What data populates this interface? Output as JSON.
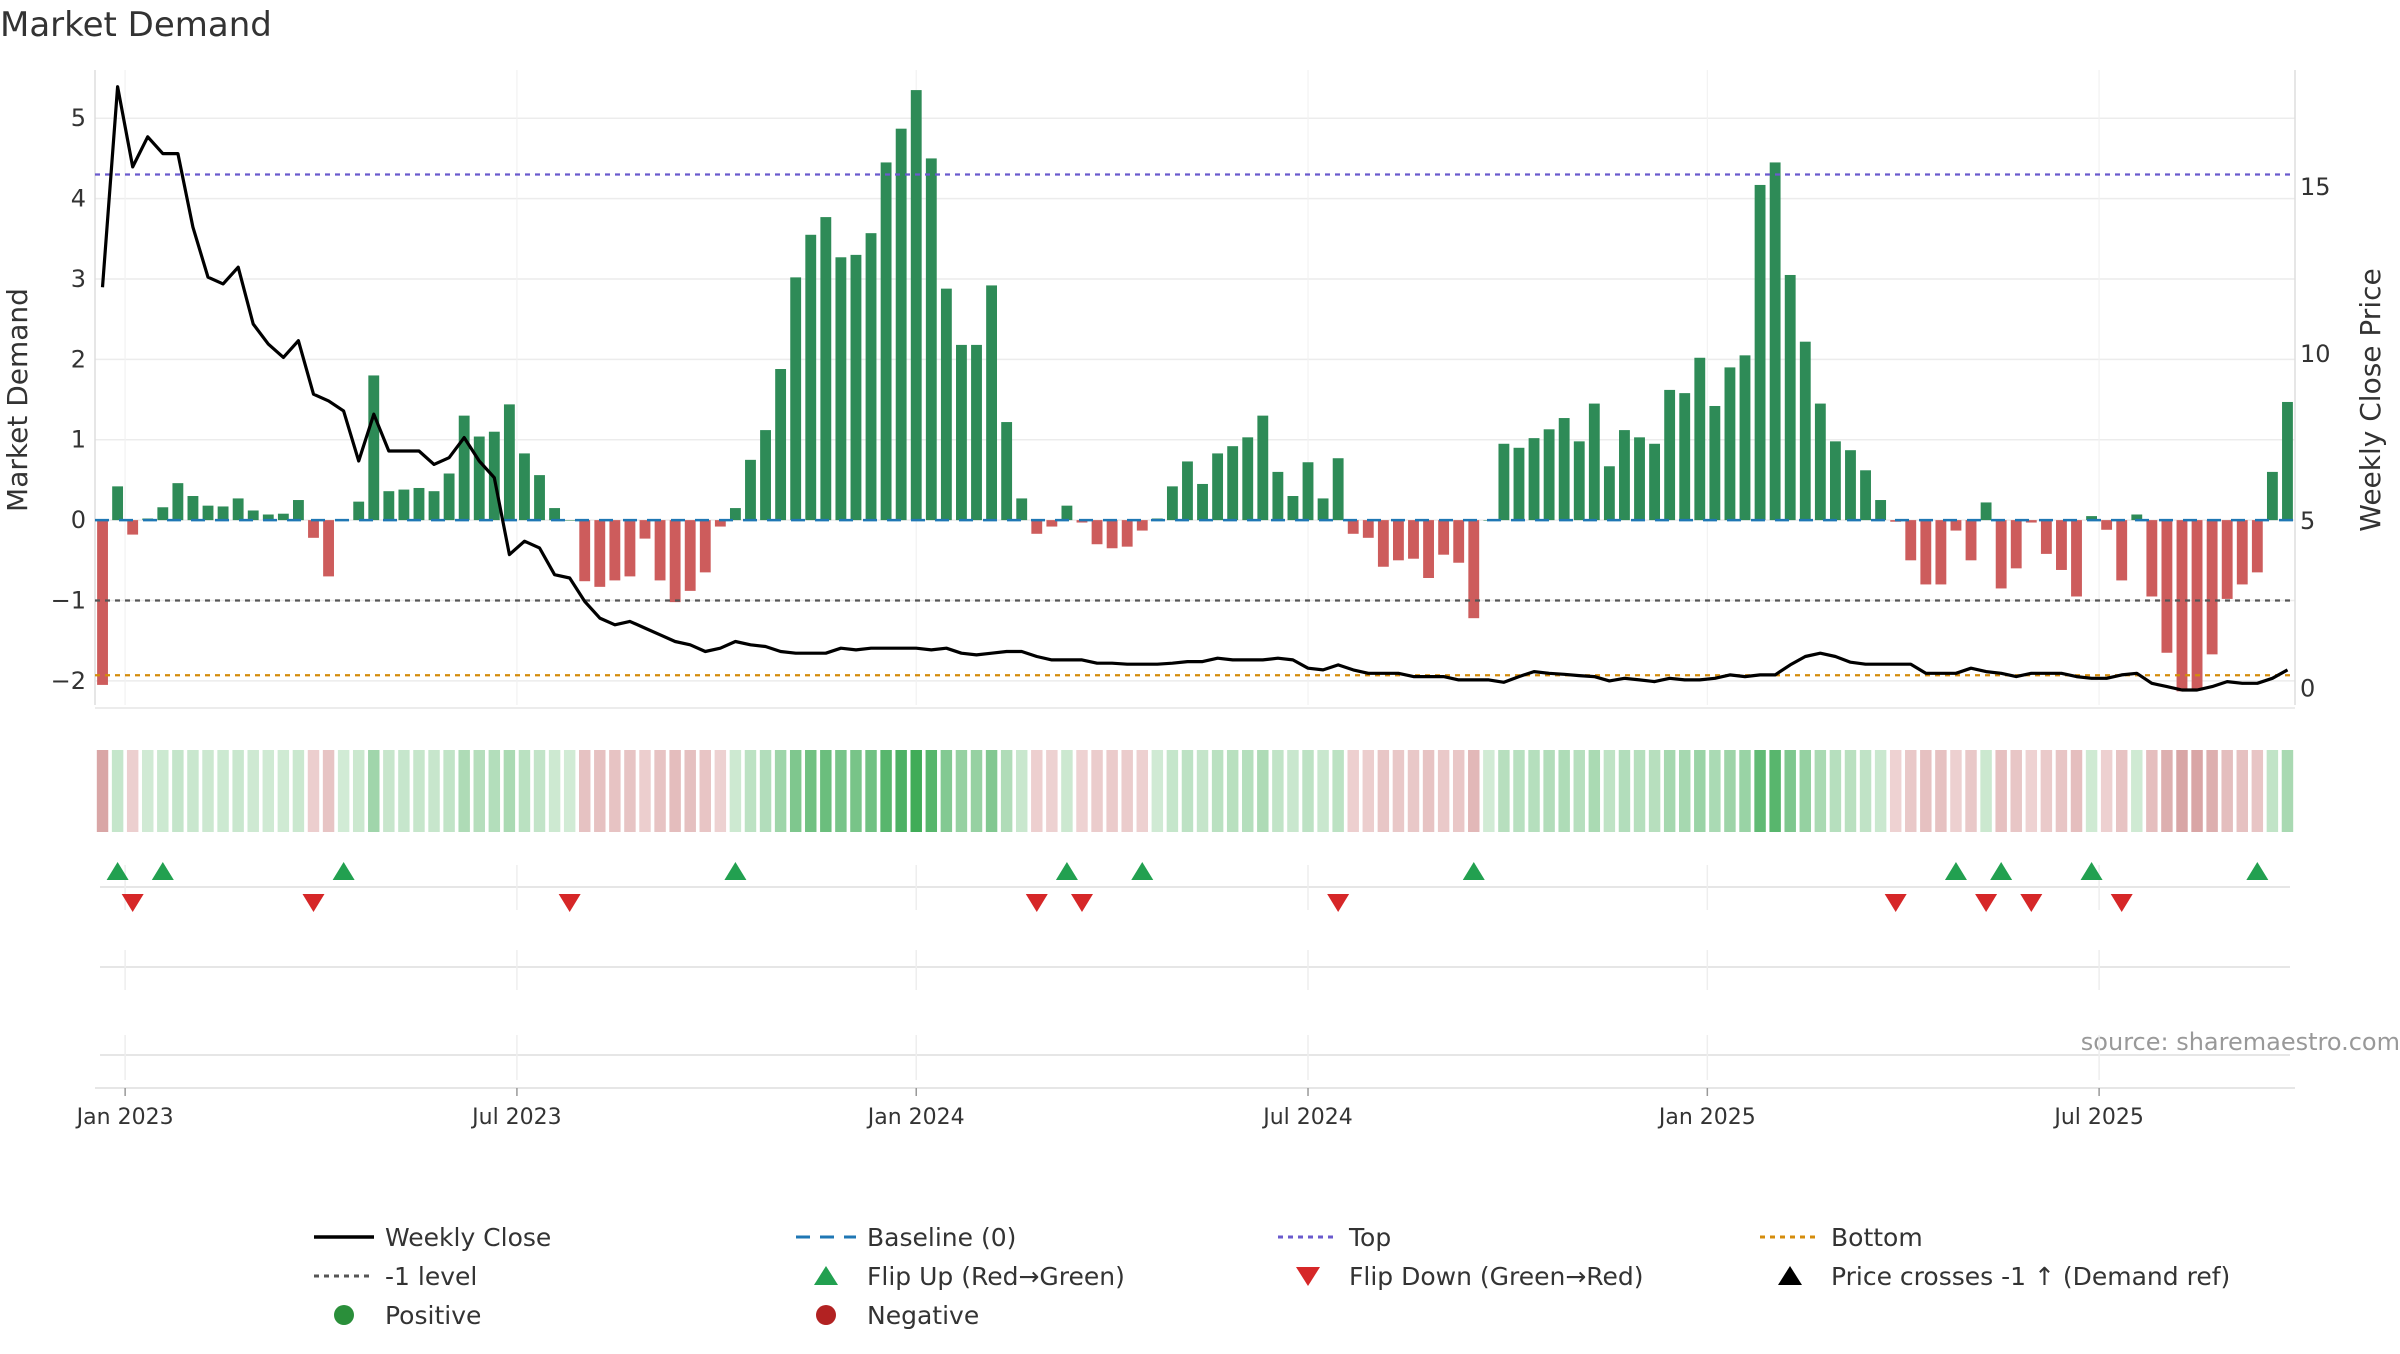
{
  "chart_data": {
    "type": "bar",
    "title": "Market Demand",
    "ylabel": "Market Demand",
    "ylabel_right": "Weekly Close Price",
    "ylim": [
      -2.3,
      5.6
    ],
    "ylim_right": [
      -0.5,
      18.5
    ],
    "yticks": [
      {
        "v": 5,
        "label": "5"
      },
      {
        "v": 4,
        "label": "4"
      },
      {
        "v": 3,
        "label": "3"
      },
      {
        "v": 2,
        "label": "2"
      },
      {
        "v": 1,
        "label": "1"
      },
      {
        "v": 0,
        "label": "0"
      },
      {
        "v": -1,
        "label": "−1"
      },
      {
        "v": -2,
        "label": "−2"
      }
    ],
    "yticks_right": [
      {
        "v": 0,
        "label": "0"
      },
      {
        "v": 5,
        "label": "5"
      },
      {
        "v": 10,
        "label": "10"
      },
      {
        "v": 15,
        "label": "15"
      }
    ],
    "xticks": [
      {
        "i": 1.5,
        "label": "Jan 2023"
      },
      {
        "i": 27.5,
        "label": "Jul 2023"
      },
      {
        "i": 54,
        "label": "Jan 2024"
      },
      {
        "i": 80,
        "label": "Jul 2024"
      },
      {
        "i": 106.5,
        "label": "Jan 2025"
      },
      {
        "i": 132.5,
        "label": "Jul 2025"
      }
    ],
    "top_level": 4.3,
    "bottom_level": -1.93,
    "minus_one_level": -1,
    "baseline": 0,
    "demand": [
      -2.05,
      0.42,
      -0.18,
      0.02,
      0.16,
      0.46,
      0.3,
      0.18,
      0.17,
      0.27,
      0.12,
      0.07,
      0.08,
      0.25,
      -0.22,
      -0.7,
      0.0,
      0.23,
      1.8,
      0.36,
      0.38,
      0.4,
      0.36,
      0.58,
      1.3,
      1.04,
      1.1,
      1.44,
      0.83,
      0.56,
      0.15,
      0.0,
      -0.76,
      -0.83,
      -0.75,
      -0.7,
      -0.23,
      -0.75,
      -1.02,
      -0.88,
      -0.65,
      -0.08,
      0.15,
      0.75,
      1.12,
      1.88,
      3.02,
      3.55,
      3.77,
      3.27,
      3.3,
      3.57,
      4.45,
      4.87,
      5.35,
      4.5,
      2.88,
      2.18,
      2.18,
      2.92,
      1.22,
      0.27,
      -0.17,
      -0.08,
      0.18,
      -0.03,
      -0.3,
      -0.35,
      -0.33,
      -0.13,
      0.02,
      0.42,
      0.73,
      0.45,
      0.83,
      0.92,
      1.03,
      1.3,
      0.6,
      0.3,
      0.72,
      0.27,
      0.77,
      -0.17,
      -0.22,
      -0.58,
      -0.5,
      -0.48,
      -0.72,
      -0.43,
      -0.53,
      -1.22,
      0.0,
      0.95,
      0.9,
      1.02,
      1.13,
      1.27,
      0.98,
      1.45,
      0.67,
      1.12,
      1.03,
      0.95,
      1.62,
      1.58,
      2.02,
      1.42,
      1.9,
      2.05,
      4.17,
      4.45,
      3.05,
      2.22,
      1.45,
      0.98,
      0.87,
      0.62,
      0.25,
      -0.02,
      -0.5,
      -0.8,
      -0.8,
      -0.13,
      -0.5,
      0.22,
      -0.85,
      -0.6,
      -0.03,
      -0.42,
      -0.62,
      -0.95,
      0.05,
      -0.12,
      -0.75,
      0.07,
      -0.95,
      -1.65,
      -2.13,
      -2.12,
      -1.67,
      -0.98,
      -0.8,
      -0.65,
      0.6,
      1.47
    ],
    "weekly_close": [
      12.0,
      18.0,
      15.6,
      16.5,
      16.0,
      16.0,
      13.8,
      12.3,
      12.1,
      12.6,
      10.9,
      10.3,
      9.9,
      10.4,
      8.8,
      8.6,
      8.3,
      6.8,
      8.2,
      7.1,
      7.1,
      7.1,
      6.7,
      6.9,
      7.5,
      6.8,
      6.3,
      4.0,
      4.4,
      4.2,
      3.4,
      3.3,
      2.6,
      2.1,
      1.9,
      2.0,
      1.8,
      1.6,
      1.4,
      1.3,
      1.1,
      1.2,
      1.4,
      1.3,
      1.25,
      1.1,
      1.05,
      1.05,
      1.05,
      1.2,
      1.15,
      1.2,
      1.2,
      1.2,
      1.2,
      1.15,
      1.2,
      1.05,
      1.0,
      1.05,
      1.1,
      1.1,
      0.95,
      0.85,
      0.85,
      0.85,
      0.75,
      0.75,
      0.72,
      0.72,
      0.72,
      0.75,
      0.8,
      0.8,
      0.9,
      0.85,
      0.85,
      0.85,
      0.9,
      0.85,
      0.6,
      0.55,
      0.7,
      0.55,
      0.45,
      0.45,
      0.45,
      0.35,
      0.35,
      0.35,
      0.25,
      0.25,
      0.25,
      0.18,
      0.35,
      0.5,
      0.45,
      0.42,
      0.38,
      0.35,
      0.22,
      0.3,
      0.25,
      0.2,
      0.3,
      0.25,
      0.25,
      0.3,
      0.4,
      0.35,
      0.4,
      0.4,
      0.7,
      0.95,
      1.05,
      0.95,
      0.78,
      0.72,
      0.72,
      0.72,
      0.72,
      0.45,
      0.45,
      0.45,
      0.6,
      0.5,
      0.45,
      0.35,
      0.45,
      0.45,
      0.45,
      0.35,
      0.3,
      0.3,
      0.4,
      0.45,
      0.15,
      0.05,
      -0.05,
      -0.05,
      0.05,
      0.2,
      0.15,
      0.15,
      0.3,
      0.55
    ],
    "flip_up": [
      1,
      4,
      16,
      42,
      64,
      69,
      91,
      123,
      126,
      132,
      143
    ],
    "flip_down": [
      2,
      14,
      31,
      62,
      65,
      82,
      119,
      125,
      128,
      134
    ],
    "source": "source: sharemaestro.com",
    "colors": {
      "positive": "#2e8b57",
      "negative": "#cd5c5c",
      "price": "#000000",
      "baseline": "#1f77b4",
      "top": "#6a5acd",
      "bottom": "#d48c0c",
      "minus_one": "#555555",
      "flip_up": "#22a050",
      "flip_down": "#d62728"
    },
    "legend": [
      {
        "key": "price",
        "label": "Weekly Close",
        "style": "solid"
      },
      {
        "key": "baseline",
        "label": "Baseline (0)",
        "style": "dashed"
      },
      {
        "key": "top",
        "label": "Top",
        "style": "dotted"
      },
      {
        "key": "bottom",
        "label": "Bottom",
        "style": "dotted"
      },
      {
        "key": "minus_one",
        "label": "-1 level",
        "style": "dotted"
      },
      {
        "key": "flip_up",
        "label": "Flip Up (Red→Green)",
        "style": "triangle-up"
      },
      {
        "key": "flip_down",
        "label": "Flip Down (Green→Red)",
        "style": "triangle-down"
      },
      {
        "key": "price",
        "label": "Price crosses -1 ↑ (Demand ref)",
        "style": "triangle-up"
      },
      {
        "key": "flip_up",
        "label": "Positive",
        "style": "circle-green"
      },
      {
        "key": "flip_down",
        "label": "Negative",
        "style": "circle-red"
      }
    ]
  }
}
